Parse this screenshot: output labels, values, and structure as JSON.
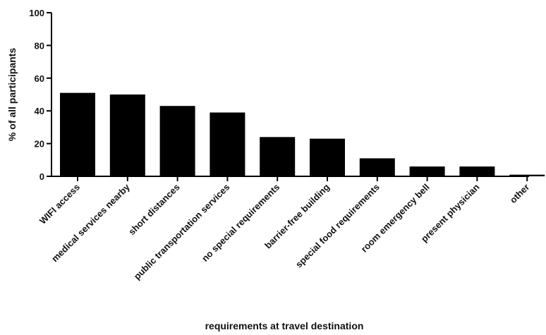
{
  "chart_data": {
    "type": "bar",
    "title": "",
    "xlabel": "requirements at travel destination",
    "ylabel": "% of all participants",
    "ylim": [
      0,
      100
    ],
    "yticks": [
      0,
      20,
      40,
      60,
      80,
      100
    ],
    "grid": false,
    "legend": "none",
    "bar_color": "#000000",
    "categories": [
      "WIFI access",
      "medical services nearby",
      "short distances",
      "public transportation services",
      "no special requirements",
      "barrier-free building",
      "special food requirements",
      "room emergency bell",
      "present physician",
      "other"
    ],
    "values": [
      51,
      50,
      43,
      39,
      24,
      23,
      11,
      6,
      6,
      1
    ]
  }
}
